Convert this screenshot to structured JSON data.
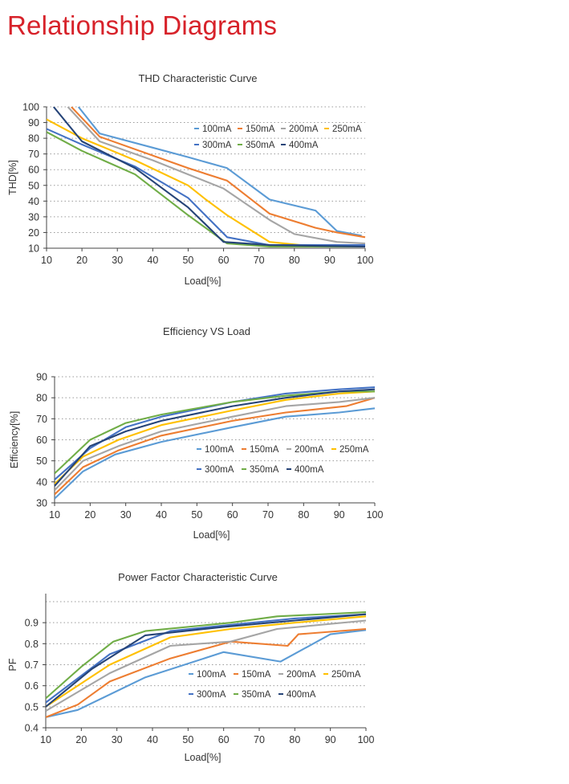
{
  "page": {
    "title": "Relationship Diagrams"
  },
  "colors": {
    "100mA": "#5b9bd5",
    "150mA": "#ed7d31",
    "200mA": "#a5a5a5",
    "250mA": "#ffc000",
    "300mA": "#4472c4",
    "350mA": "#70ad47",
    "400mA": "#264478"
  },
  "chart_data": [
    {
      "id": "thd",
      "type": "line",
      "title": "THD Characteristic Curve",
      "xlabel": "Load[%]",
      "ylabel": "THD[%]",
      "xlim": [
        10,
        100
      ],
      "ylim": [
        10,
        100
      ],
      "xticks": [
        10,
        20,
        30,
        40,
        50,
        60,
        70,
        80,
        90,
        100
      ],
      "yticks": [
        10,
        20,
        30,
        40,
        50,
        60,
        70,
        80,
        90,
        100
      ],
      "grid": "dotted horizontal",
      "legend": "inside upper-right",
      "series": [
        {
          "name": "100mA",
          "x": [
            19,
            25,
            40,
            50,
            61,
            73,
            86,
            92,
            99
          ],
          "y": [
            100,
            83,
            74,
            68,
            61,
            41,
            34,
            21,
            18
          ]
        },
        {
          "name": "150mA",
          "x": [
            17,
            25,
            40,
            50,
            61,
            73,
            86,
            92,
            100
          ],
          "y": [
            100,
            81,
            69,
            61,
            53,
            32,
            23,
            20,
            17
          ]
        },
        {
          "name": "200mA",
          "x": [
            16,
            25,
            40,
            50,
            60,
            73,
            80,
            92,
            100
          ],
          "y": [
            100,
            78,
            66,
            57,
            48,
            28,
            19,
            14,
            13
          ]
        },
        {
          "name": "250mA",
          "x": [
            10,
            20,
            35,
            50,
            55,
            61,
            73,
            86,
            100
          ],
          "y": [
            92,
            80,
            66,
            50,
            41,
            31,
            14,
            11,
            11
          ]
        },
        {
          "name": "300mA",
          "x": [
            10,
            20,
            35,
            50,
            61,
            73,
            100
          ],
          "y": [
            86,
            76,
            62,
            42,
            17,
            12,
            12
          ]
        },
        {
          "name": "350mA",
          "x": [
            10,
            20,
            35,
            50,
            61,
            73,
            100
          ],
          "y": [
            84,
            72,
            57,
            31,
            13,
            11,
            11
          ]
        },
        {
          "name": "400mA",
          "x": [
            12,
            20,
            35,
            50,
            60,
            73,
            100
          ],
          "y": [
            100,
            78,
            61,
            36,
            14,
            12,
            11
          ]
        }
      ]
    },
    {
      "id": "eff",
      "type": "line",
      "title": "Efficiency VS Load",
      "xlabel": "Load[%]",
      "ylabel": "Efficiency[%]",
      "xlim": [
        10,
        100
      ],
      "ylim": [
        30,
        90
      ],
      "xticks": [
        10,
        20,
        30,
        40,
        50,
        60,
        70,
        80,
        90,
        100
      ],
      "yticks": [
        30,
        40,
        50,
        60,
        70,
        80,
        90
      ],
      "grid": "dotted horizontal",
      "legend": "inside lower-right",
      "series": [
        {
          "name": "100mA",
          "x": [
            10,
            18,
            27,
            40,
            60,
            75,
            90,
            100
          ],
          "y": [
            32,
            45,
            53,
            59,
            66,
            71,
            73,
            75
          ]
        },
        {
          "name": "150mA",
          "x": [
            10,
            18,
            28,
            40,
            60,
            75,
            92,
            100
          ],
          "y": [
            34,
            47,
            55,
            62,
            69,
            73,
            76,
            80
          ]
        },
        {
          "name": "200mA",
          "x": [
            10,
            18,
            28,
            40,
            60,
            75,
            90,
            100
          ],
          "y": [
            36,
            50,
            57,
            64,
            71,
            76,
            78,
            80
          ]
        },
        {
          "name": "250mA",
          "x": [
            10,
            18,
            28,
            40,
            60,
            75,
            90,
            100
          ],
          "y": [
            39,
            52,
            60,
            67,
            74,
            79,
            82,
            83
          ]
        },
        {
          "name": "300mA",
          "x": [
            10,
            20,
            30,
            40,
            60,
            75,
            90,
            100
          ],
          "y": [
            41,
            56,
            66,
            71,
            78,
            82,
            84,
            85
          ]
        },
        {
          "name": "350mA",
          "x": [
            10,
            20,
            30,
            40,
            60,
            75,
            90,
            100
          ],
          "y": [
            44,
            60,
            68,
            72,
            78,
            81,
            83,
            83
          ]
        },
        {
          "name": "400mA",
          "x": [
            10,
            20,
            30,
            40,
            60,
            75,
            90,
            100
          ],
          "y": [
            38,
            57,
            64,
            69,
            76,
            80,
            83,
            84
          ]
        }
      ]
    },
    {
      "id": "pf",
      "type": "line",
      "title": "Power Factor Characteristic Curve",
      "xlabel": "Load[%]",
      "ylabel": "PF",
      "xlim": [
        10,
        100
      ],
      "ylim": [
        0.4,
        1.0
      ],
      "xticks": [
        10,
        20,
        30,
        40,
        50,
        60,
        70,
        80,
        90,
        100
      ],
      "yticks": [
        0.4,
        0.5,
        0.6,
        0.7,
        0.8,
        0.9
      ],
      "ytick_labels": [
        "0.4",
        "0.5",
        "0.6",
        "0.7",
        "0.8",
        "0.9"
      ],
      "grid": "dotted horizontal",
      "legend": "inside lower-right",
      "series": [
        {
          "name": "100mA",
          "x": [
            10,
            19,
            38,
            60,
            76,
            90,
            100
          ],
          "y": [
            0.45,
            0.485,
            0.64,
            0.76,
            0.715,
            0.845,
            0.865
          ]
        },
        {
          "name": "150mA",
          "x": [
            10,
            19,
            28,
            45,
            62,
            78,
            81,
            100
          ],
          "y": [
            0.45,
            0.51,
            0.62,
            0.73,
            0.81,
            0.79,
            0.845,
            0.87
          ]
        },
        {
          "name": "200mA",
          "x": [
            10,
            28,
            45,
            62,
            75,
            100
          ],
          "y": [
            0.48,
            0.66,
            0.79,
            0.81,
            0.87,
            0.91
          ]
        },
        {
          "name": "250mA",
          "x": [
            10,
            28,
            45,
            62,
            80,
            100
          ],
          "y": [
            0.5,
            0.7,
            0.83,
            0.87,
            0.9,
            0.93
          ]
        },
        {
          "name": "300mA",
          "x": [
            10,
            28,
            45,
            62,
            80,
            100
          ],
          "y": [
            0.52,
            0.75,
            0.86,
            0.89,
            0.92,
            0.94
          ]
        },
        {
          "name": "350mA",
          "x": [
            10,
            20,
            29,
            38,
            62,
            75,
            100
          ],
          "y": [
            0.54,
            0.69,
            0.81,
            0.86,
            0.9,
            0.93,
            0.95
          ]
        },
        {
          "name": "400mA",
          "x": [
            10,
            23,
            38,
            60,
            80,
            100
          ],
          "y": [
            0.5,
            0.68,
            0.84,
            0.88,
            0.91,
            0.94
          ]
        }
      ]
    }
  ]
}
